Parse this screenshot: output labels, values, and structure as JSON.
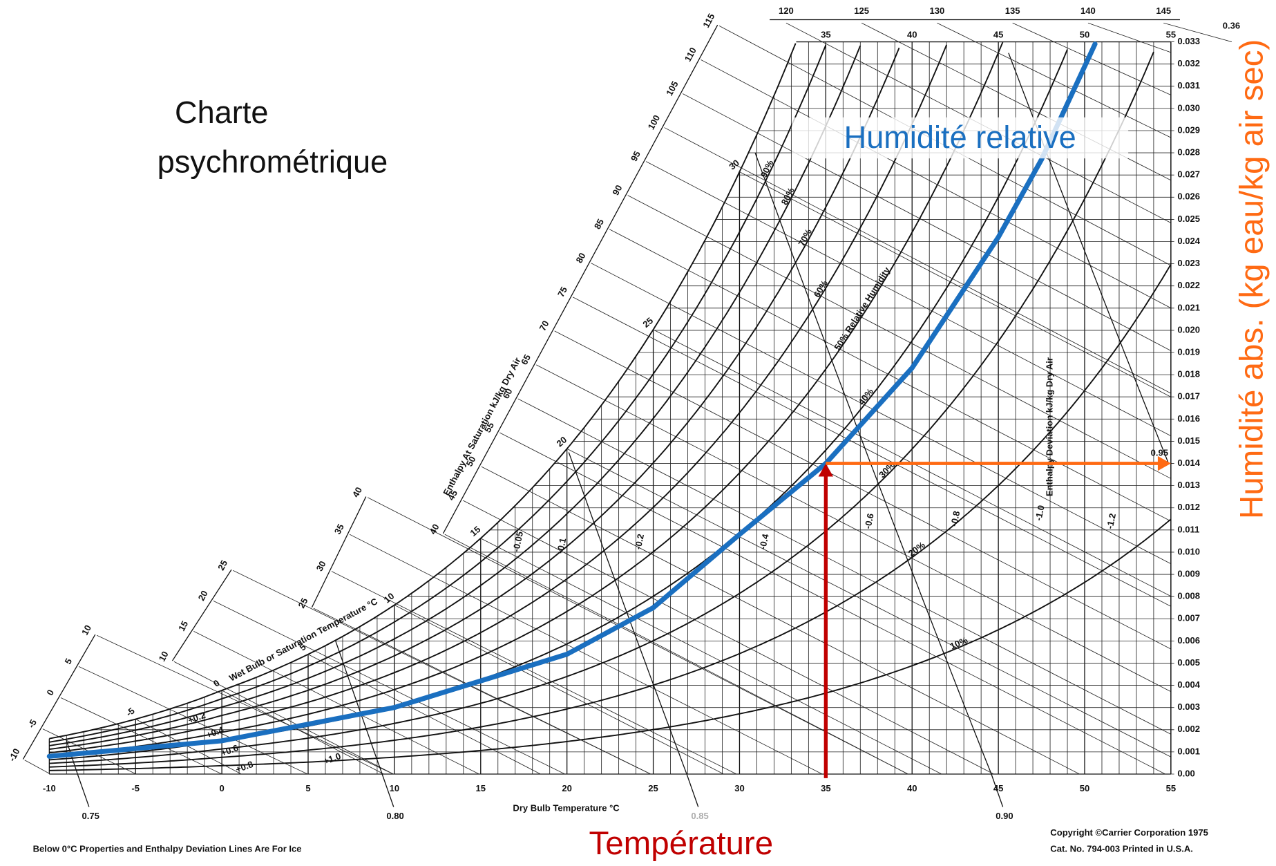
{
  "overlay": {
    "title_lines": [
      "Charte",
      "psychrométrique"
    ],
    "y_label": "Humidité abs. (kg eau/kg air sec)",
    "x_label": "Température"
  },
  "chart_data": {
    "type": "psychrometric",
    "x_label": "Dry Bulb Temperature °C",
    "xlim": [
      -10,
      55
    ],
    "xticks": [
      -10,
      -5,
      0,
      5,
      10,
      15,
      20,
      25,
      30,
      35,
      40,
      45,
      50,
      55
    ],
    "top_xticks": [
      35,
      40,
      45,
      50,
      55
    ],
    "ylim": [
      0,
      0.033
    ],
    "yticks": [
      {
        "value": 0,
        "label": "0.00"
      },
      0.001,
      0.002,
      0.003,
      0.004,
      0.005,
      0.006,
      0.007,
      0.008,
      0.009,
      {
        "value": 0.01,
        "label": "0.010"
      },
      0.011,
      0.012,
      0.013,
      0.014,
      0.015,
      0.016,
      0.017,
      0.018,
      0.019,
      {
        "value": 0.02,
        "label": "0.020"
      },
      0.021,
      0.022,
      0.023,
      0.024,
      0.025,
      0.026,
      0.027,
      0.028,
      0.029,
      {
        "value": 0.03,
        "label": "0.030"
      },
      0.031,
      0.032,
      0.033
    ],
    "rh_curves": [
      100,
      {
        "value": 90,
        "label": "90%"
      },
      {
        "value": 80,
        "label": "80%"
      },
      {
        "value": 70,
        "label": "70%"
      },
      {
        "value": 60,
        "label": "60%"
      },
      {
        "value": 50,
        "label": "50% Relative Humidity"
      },
      {
        "value": 40,
        "label": "40%"
      },
      {
        "value": 30,
        "label": "30%"
      },
      {
        "value": 20,
        "label": "20%"
      },
      {
        "value": 10,
        "label": "10%"
      }
    ],
    "wet_bulb_title": "Wet Bulb or Saturation Temperature °C",
    "wet_bulb_ticks": [
      -5,
      0,
      5,
      10,
      15,
      20,
      25,
      30
    ],
    "enthalpy_title": "Enthalpy At Saturation kJ/kg Dry Air",
    "enthalpy_scales": [
      [
        -10,
        -5,
        0,
        5,
        10
      ],
      [
        10,
        15,
        20,
        25
      ],
      [
        25,
        30,
        35,
        40
      ],
      [
        40,
        45,
        50,
        55,
        60,
        65,
        70,
        75,
        80,
        85,
        90,
        95,
        100,
        105,
        110,
        115
      ],
      [
        120,
        125,
        130,
        135,
        140,
        145
      ]
    ],
    "volume_ticks": [
      0.75,
      {
        "value": 0.8,
        "label": "0.80"
      },
      0.85,
      {
        "value": 0.9,
        "label": "0.90"
      },
      0.95
    ],
    "deviation_title": "Enthalpy Deviation kJ/kg Dry Air",
    "deviation_labels": [
      "-0.05",
      "-0.1",
      "-0.2",
      "-0.4",
      "-0.6",
      "-0.8",
      "-1.0",
      "-1.2",
      "+0.2",
      "+0.4",
      "+0.6",
      "+0.8",
      "+1.0"
    ],
    "series": [
      {
        "name": "Humidité relative",
        "color": "#1a6fc0",
        "x": [
          -10,
          0,
          10,
          15,
          20,
          25,
          30,
          35,
          40,
          45,
          47.5,
          50.6
        ],
        "values": [
          0.0008,
          0.0015,
          0.003,
          0.0042,
          0.0054,
          0.0075,
          0.0108,
          0.014,
          0.0183,
          0.0242,
          0.0277,
          0.0329
        ]
      }
    ],
    "highlight": {
      "x": 35,
      "y": 0.014,
      "x_color": "#c00000",
      "y_color": "#ff6a13"
    },
    "notes": [
      "Below 0°C Properties and Enthalpy Deviation Lines Are For Ice",
      "Copyright ©Carrier Corporation 1975",
      "Cat. No. 794-003    Printed in U.S.A.",
      "0.36"
    ]
  }
}
